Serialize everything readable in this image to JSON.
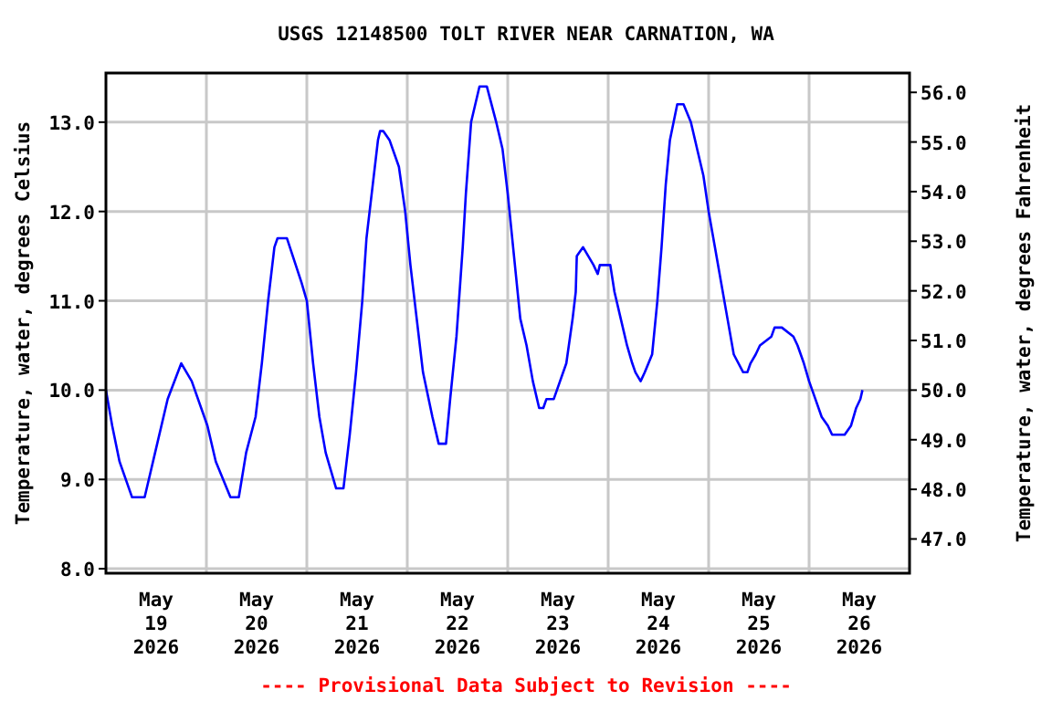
{
  "chart_data": {
    "type": "line",
    "title": "USGS 12148500 TOLT RIVER NEAR CARNATION, WA",
    "ylabel": "Temperature, water, degrees Celsius",
    "y2label": "Temperature, water, degrees Fahrenheit",
    "annotations": [
      "---- Provisional Data Subject to Revision ----"
    ],
    "xlim": [
      "2026-05-19T00:00",
      "2026-05-27T00:00"
    ],
    "xticks": [
      {
        "value": "2026-05-19T12:00",
        "label": "May\n19\n2026"
      },
      {
        "value": "2026-05-20T00:00",
        "label": null
      },
      {
        "value": "2026-05-20T12:00",
        "label": "May\n20\n2026"
      },
      {
        "value": "2026-05-21T00:00",
        "label": null
      },
      {
        "value": "2026-05-21T12:00",
        "label": "May\n21\n2026"
      },
      {
        "value": "2026-05-22T00:00",
        "label": null
      },
      {
        "value": "2026-05-22T12:00",
        "label": "May\n22\n2026"
      },
      {
        "value": "2026-05-23T00:00",
        "label": null
      },
      {
        "value": "2026-05-23T12:00",
        "label": "May\n23\n2026"
      },
      {
        "value": "2026-05-24T00:00",
        "label": null
      },
      {
        "value": "2026-05-24T12:00",
        "label": "May\n24\n2026"
      },
      {
        "value": "2026-05-25T00:00",
        "label": null
      },
      {
        "value": "2026-05-25T12:00",
        "label": "May\n25\n2026"
      },
      {
        "value": "2026-05-26T00:00",
        "label": null
      },
      {
        "value": "2026-05-26T12:00",
        "label": "May\n26\n2026"
      }
    ],
    "ylim": [
      7.95,
      13.55
    ],
    "yticks": [
      {
        "value": 8,
        "label": "8.0"
      },
      {
        "value": 9,
        "label": "9.0"
      },
      {
        "value": 10,
        "label": "10.0"
      },
      {
        "value": 11,
        "label": "11.0"
      },
      {
        "value": 12,
        "label": "12.0"
      },
      {
        "value": 13,
        "label": "13.0"
      }
    ],
    "y2lim": [
      46.31,
      56.39
    ],
    "y2ticks": [
      {
        "value": 47,
        "label": "47.0"
      },
      {
        "value": 48,
        "label": "48.0"
      },
      {
        "value": 49,
        "label": "49.0"
      },
      {
        "value": 50,
        "label": "50.0"
      },
      {
        "value": 51,
        "label": "51.0"
      },
      {
        "value": 52,
        "label": "52.0"
      },
      {
        "value": 53,
        "label": "53.0"
      },
      {
        "value": 54,
        "label": "54.0"
      },
      {
        "value": 55,
        "label": "55.0"
      },
      {
        "value": 56,
        "label": "56.0"
      }
    ],
    "grid": true,
    "series": [
      {
        "color": "#0000ff",
        "x": [
          "2026-05-19T00:00",
          "2026-05-19T01:30",
          "2026-05-19T03:15",
          "2026-05-19T06:15",
          "2026-05-19T09:15",
          "2026-05-19T11:45",
          "2026-05-19T14:45",
          "2026-05-19T18:00",
          "2026-05-19T20:30",
          "2026-05-20T00:15",
          "2026-05-20T02:15",
          "2026-05-20T05:45",
          "2026-05-20T07:45",
          "2026-05-20T09:30",
          "2026-05-20T11:45",
          "2026-05-20T13:15",
          "2026-05-20T14:45",
          "2026-05-20T16:15",
          "2026-05-20T17:00",
          "2026-05-20T19:15",
          "2026-05-20T22:45",
          "2026-05-21T00:00",
          "2026-05-21T01:30",
          "2026-05-21T03:00",
          "2026-05-21T04:30",
          "2026-05-21T07:00",
          "2026-05-21T08:45",
          "2026-05-21T10:15",
          "2026-05-21T11:45",
          "2026-05-21T13:15",
          "2026-05-21T14:15",
          "2026-05-21T15:45",
          "2026-05-21T17:00",
          "2026-05-21T17:30",
          "2026-05-21T18:15",
          "2026-05-21T19:45",
          "2026-05-21T22:00",
          "2026-05-21T23:30",
          "2026-05-22T00:45",
          "2026-05-22T02:15",
          "2026-05-22T03:45",
          "2026-05-22T06:00",
          "2026-05-22T07:30",
          "2026-05-22T09:15",
          "2026-05-22T10:15",
          "2026-05-22T11:45",
          "2026-05-22T13:15",
          "2026-05-22T14:00",
          "2026-05-22T15:15",
          "2026-05-22T17:15",
          "2026-05-22T19:00",
          "2026-05-22T21:15",
          "2026-05-22T22:45",
          "2026-05-23T00:00",
          "2026-05-23T01:30",
          "2026-05-23T03:00",
          "2026-05-23T04:30",
          "2026-05-23T06:00",
          "2026-05-23T07:30",
          "2026-05-23T08:30",
          "2026-05-23T09:15",
          "2026-05-23T11:00",
          "2026-05-23T11:45",
          "2026-05-23T14:00",
          "2026-05-23T15:30",
          "2026-05-23T16:15",
          "2026-05-23T16:30",
          "2026-05-23T18:00",
          "2026-05-23T19:15",
          "2026-05-23T20:30",
          "2026-05-23T21:30",
          "2026-05-23T22:00",
          "2026-05-24T00:30",
          "2026-05-24T01:30",
          "2026-05-24T03:00",
          "2026-05-24T04:30",
          "2026-05-24T05:45",
          "2026-05-24T06:30",
          "2026-05-24T07:45",
          "2026-05-24T08:45",
          "2026-05-24T10:30",
          "2026-05-24T11:45",
          "2026-05-24T12:45",
          "2026-05-24T13:45",
          "2026-05-24T14:45",
          "2026-05-24T16:30",
          "2026-05-24T18:00",
          "2026-05-24T19:45",
          "2026-05-24T21:15",
          "2026-05-24T22:45",
          "2026-05-25T00:00",
          "2026-05-25T01:30",
          "2026-05-25T03:00",
          "2026-05-25T04:30",
          "2026-05-25T06:00",
          "2026-05-25T08:15",
          "2026-05-25T09:15",
          "2026-05-25T10:00",
          "2026-05-25T11:15",
          "2026-05-25T12:15",
          "2026-05-25T15:00",
          "2026-05-25T15:45",
          "2026-05-25T17:30",
          "2026-05-25T20:15",
          "2026-05-25T21:15",
          "2026-05-25T22:45",
          "2026-05-26T00:00",
          "2026-05-26T01:30",
          "2026-05-26T03:00",
          "2026-05-26T04:30",
          "2026-05-26T05:30",
          "2026-05-26T08:30",
          "2026-05-26T10:00",
          "2026-05-26T11:15",
          "2026-05-26T12:15",
          "2026-05-26T12:45"
        ],
        "values": [
          10.0,
          9.6,
          9.2,
          8.8,
          8.8,
          9.3,
          9.9,
          10.3,
          10.1,
          9.6,
          9.2,
          8.8,
          8.8,
          9.3,
          9.7,
          10.3,
          11.0,
          11.6,
          11.7,
          11.7,
          11.2,
          11.0,
          10.3,
          9.7,
          9.3,
          8.9,
          8.9,
          9.5,
          10.2,
          11.0,
          11.7,
          12.3,
          12.8,
          12.9,
          12.9,
          12.8,
          12.5,
          12.0,
          11.4,
          10.8,
          10.2,
          9.7,
          9.4,
          9.4,
          9.9,
          10.6,
          11.6,
          12.2,
          13.0,
          13.4,
          13.4,
          13.0,
          12.7,
          12.2,
          11.5,
          10.8,
          10.5,
          10.1,
          9.8,
          9.8,
          9.9,
          9.9,
          10.0,
          10.3,
          10.8,
          11.1,
          11.5,
          11.6,
          11.5,
          11.4,
          11.3,
          11.4,
          11.4,
          11.1,
          10.8,
          10.5,
          10.3,
          10.2,
          10.1,
          10.2,
          10.4,
          11.0,
          11.6,
          12.3,
          12.8,
          13.2,
          13.2,
          13.0,
          12.7,
          12.4,
          12.0,
          11.6,
          11.2,
          10.8,
          10.4,
          10.2,
          10.2,
          10.3,
          10.4,
          10.5,
          10.6,
          10.7,
          10.7,
          10.6,
          10.5,
          10.3,
          10.1,
          9.9,
          9.7,
          9.6,
          9.5,
          9.5,
          9.6,
          9.8,
          9.9,
          10.0
        ]
      }
    ]
  }
}
